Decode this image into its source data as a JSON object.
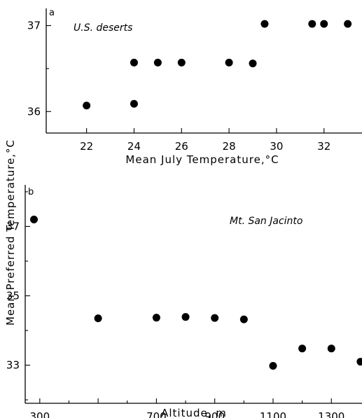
{
  "chart_data": [
    {
      "type": "scatter",
      "panel": "a",
      "annotation": "U.S. deserts",
      "xlabel": "Mean July Temperature,°C",
      "ylabel": "Mean Preferred Temperature,°C",
      "xlim": [
        20.3,
        33.6
      ],
      "ylim": [
        35.75,
        37.2
      ],
      "xticks": [
        22,
        24,
        26,
        28,
        30,
        32
      ],
      "xtick_labels": [
        "22",
        "24",
        "26",
        "28",
        "30",
        "32"
      ],
      "yticks": [
        36,
        37
      ],
      "ytick_labels": [
        "36",
        "37"
      ],
      "yminor": [
        36.5
      ],
      "grid": false,
      "points": [
        {
          "x": 22,
          "y": 36.07
        },
        {
          "x": 24,
          "y": 36.09
        },
        {
          "x": 24,
          "y": 36.57
        },
        {
          "x": 25,
          "y": 36.57
        },
        {
          "x": 26,
          "y": 36.57
        },
        {
          "x": 28,
          "y": 36.57
        },
        {
          "x": 29,
          "y": 36.56
        },
        {
          "x": 29.5,
          "y": 37.02
        },
        {
          "x": 31.5,
          "y": 37.02
        },
        {
          "x": 32,
          "y": 37.02
        },
        {
          "x": 33,
          "y": 37.02
        }
      ]
    },
    {
      "type": "scatter",
      "panel": "b",
      "annotation": "Mt. San Jacinto",
      "xlabel": "Altitude,  m",
      "ylabel": "Mean Preferred Temperature,°C",
      "xlim": [
        250,
        1405
      ],
      "ylim": [
        31.9,
        38.2
      ],
      "xticks": [
        300,
        500,
        700,
        900,
        1100,
        1300
      ],
      "xtick_labels": [
        "300",
        "",
        "700",
        "900",
        "1100",
        "1300"
      ],
      "xminor": [
        400,
        600,
        800,
        1000,
        1200
      ],
      "yticks": [
        33,
        35,
        37
      ],
      "ytick_labels": [
        "33",
        "35",
        "37"
      ],
      "yminor": [
        32,
        34,
        36,
        38
      ],
      "grid": false,
      "points": [
        {
          "x": 280,
          "y": 37.2
        },
        {
          "x": 500,
          "y": 34.35
        },
        {
          "x": 700,
          "y": 34.37
        },
        {
          "x": 800,
          "y": 34.39
        },
        {
          "x": 900,
          "y": 34.36
        },
        {
          "x": 1000,
          "y": 34.32
        },
        {
          "x": 1100,
          "y": 32.98
        },
        {
          "x": 1200,
          "y": 33.48
        },
        {
          "x": 1300,
          "y": 33.48
        },
        {
          "x": 1400,
          "y": 33.1
        }
      ]
    }
  ]
}
